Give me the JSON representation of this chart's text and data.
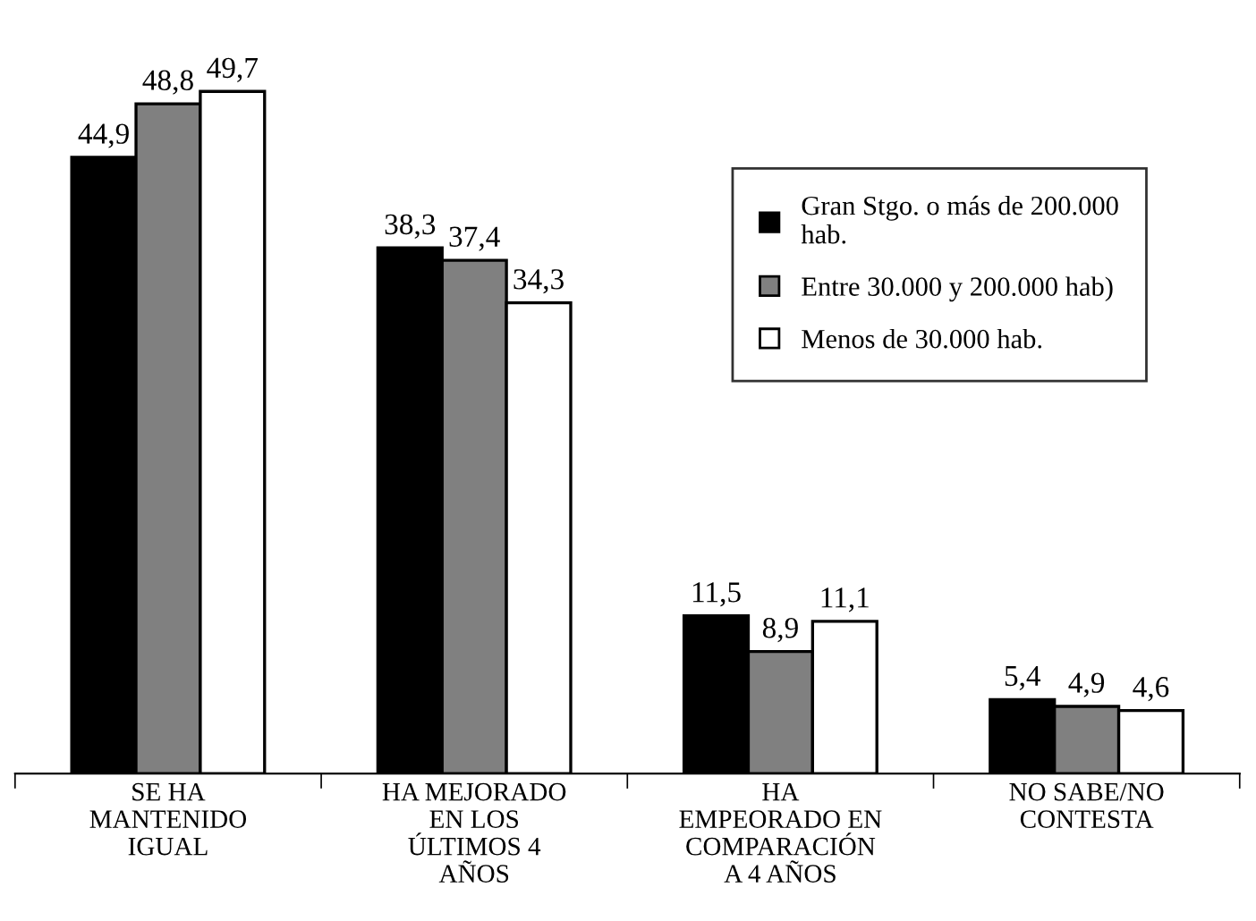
{
  "chart_data": {
    "type": "bar",
    "categories": [
      "SE HA\nMANTENIDO\nIGUAL",
      "HA MEJORADO\nEN LOS\nÚLTIMOS 4\nAÑOS",
      "HA\nEMPEORADO EN\nCOMPARACIÓN\nA 4 AÑOS",
      "NO SABE/NO\nCONTESTA"
    ],
    "series": [
      {
        "name": "Gran Stgo. o más de 200.000\nhab.",
        "color": "#000000",
        "values": [
          44.9,
          38.3,
          11.5,
          5.4
        ],
        "value_labels": [
          "44,9",
          "38,3",
          "11,5",
          "5,4"
        ]
      },
      {
        "name": "Entre 30.000 y 200.000 hab)",
        "color": "#808080",
        "values": [
          48.8,
          37.4,
          8.9,
          4.9
        ],
        "value_labels": [
          "48,8",
          "37,4",
          "8,9",
          "4,9"
        ]
      },
      {
        "name": "Menos de 30.000 hab.",
        "color": "#ffffff",
        "values": [
          49.7,
          34.3,
          11.1,
          4.6
        ],
        "value_labels": [
          "49,7",
          "34,3",
          "11,1",
          "4,6"
        ]
      }
    ],
    "tick_labels": "x",
    "legend": "top right",
    "grid": false
  }
}
